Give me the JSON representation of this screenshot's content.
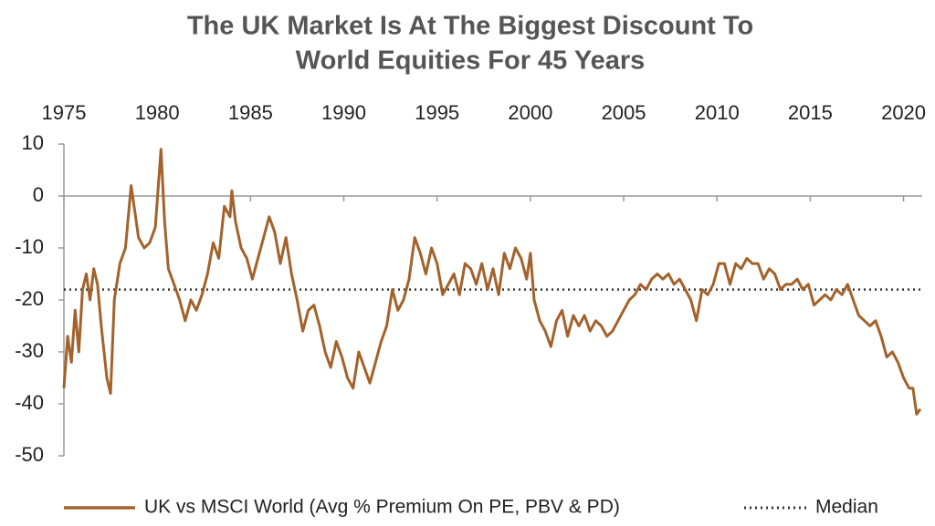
{
  "chart_data": {
    "type": "line",
    "title": [
      "The UK Market Is At The Biggest Discount To",
      "World Equities For 45 Years"
    ],
    "xlim": [
      1975,
      2021
    ],
    "xticks": [
      1975,
      1980,
      1985,
      1990,
      1995,
      2000,
      2005,
      2010,
      2015,
      2020
    ],
    "ylim": [
      -50,
      10
    ],
    "yticks": [
      10,
      0,
      -10,
      -20,
      -30,
      -40,
      -50
    ],
    "series": [
      {
        "name": "UK vs MSCI World (Avg % Premium On PE, PBV & PD)",
        "color": "#a3622b",
        "x": [
          1975.0,
          1975.2,
          1975.4,
          1975.6,
          1975.8,
          1976.0,
          1976.2,
          1976.4,
          1976.6,
          1976.8,
          1977.0,
          1977.3,
          1977.5,
          1977.7,
          1978.0,
          1978.3,
          1978.6,
          1978.8,
          1979.0,
          1979.3,
          1979.6,
          1979.9,
          1980.2,
          1980.4,
          1980.6,
          1980.9,
          1981.2,
          1981.5,
          1981.8,
          1982.1,
          1982.4,
          1982.7,
          1983.0,
          1983.3,
          1983.6,
          1983.9,
          1984.0,
          1984.2,
          1984.5,
          1984.8,
          1985.1,
          1985.4,
          1985.7,
          1986.0,
          1986.3,
          1986.6,
          1986.9,
          1987.2,
          1987.5,
          1987.8,
          1988.1,
          1988.4,
          1988.7,
          1989.0,
          1989.3,
          1989.6,
          1989.9,
          1990.2,
          1990.5,
          1990.8,
          1991.1,
          1991.4,
          1991.7,
          1992.0,
          1992.3,
          1992.6,
          1992.9,
          1993.2,
          1993.5,
          1993.8,
          1994.1,
          1994.4,
          1994.7,
          1995.0,
          1995.3,
          1995.6,
          1995.9,
          1996.2,
          1996.5,
          1996.8,
          1997.1,
          1997.4,
          1997.7,
          1998.0,
          1998.3,
          1998.6,
          1998.9,
          1999.2,
          1999.5,
          1999.8,
          2000.0,
          2000.2,
          2000.5,
          2000.8,
          2001.1,
          2001.4,
          2001.7,
          2002.0,
          2002.3,
          2002.6,
          2002.9,
          2003.2,
          2003.5,
          2003.8,
          2004.1,
          2004.4,
          2004.7,
          2005.0,
          2005.3,
          2005.6,
          2005.9,
          2006.2,
          2006.5,
          2006.8,
          2007.1,
          2007.4,
          2007.7,
          2008.0,
          2008.3,
          2008.6,
          2008.9,
          2009.2,
          2009.5,
          2009.8,
          2010.1,
          2010.4,
          2010.7,
          2011.0,
          2011.3,
          2011.6,
          2011.9,
          2012.2,
          2012.5,
          2012.8,
          2013.1,
          2013.4,
          2013.7,
          2014.0,
          2014.3,
          2014.6,
          2014.9,
          2015.2,
          2015.5,
          2015.8,
          2016.1,
          2016.4,
          2016.7,
          2017.0,
          2017.3,
          2017.6,
          2017.9,
          2018.2,
          2018.5,
          2018.8,
          2019.1,
          2019.4,
          2019.7,
          2020.0,
          2020.3,
          2020.5,
          2020.7,
          2020.9
        ],
        "values": [
          -37,
          -27,
          -32,
          -22,
          -30,
          -18,
          -15,
          -20,
          -14,
          -17,
          -25,
          -35,
          -38,
          -20,
          -13,
          -10,
          2,
          -3,
          -8,
          -10,
          -9,
          -6,
          9,
          -5,
          -14,
          -17,
          -20,
          -24,
          -20,
          -22,
          -19,
          -15,
          -9,
          -12,
          -2,
          -4,
          1,
          -5,
          -10,
          -12,
          -16,
          -12,
          -8,
          -4,
          -7,
          -13,
          -8,
          -15,
          -20,
          -26,
          -22,
          -21,
          -25,
          -30,
          -33,
          -28,
          -31,
          -35,
          -37,
          -30,
          -33,
          -36,
          -32,
          -28,
          -25,
          -18,
          -22,
          -20,
          -16,
          -8,
          -11,
          -15,
          -10,
          -13,
          -19,
          -17,
          -15,
          -19,
          -13,
          -14,
          -17,
          -13,
          -18,
          -14,
          -19,
          -11,
          -14,
          -10,
          -12,
          -16,
          -11,
          -20,
          -24,
          -26,
          -29,
          -24,
          -22,
          -27,
          -23,
          -25,
          -23,
          -26,
          -24,
          -25,
          -27,
          -26,
          -24,
          -22,
          -20,
          -19,
          -17,
          -18,
          -16,
          -15,
          -16,
          -15,
          -17,
          -16,
          -18,
          -20,
          -24,
          -18,
          -19,
          -17,
          -13,
          -13,
          -17,
          -13,
          -14,
          -12,
          -13,
          -13,
          -16,
          -14,
          -15,
          -18,
          -17,
          -17,
          -16,
          -18,
          -17,
          -21,
          -20,
          -19,
          -20,
          -18,
          -19,
          -17,
          -20,
          -23,
          -24,
          -25,
          -24,
          -27,
          -31,
          -30,
          -32,
          -35,
          -37,
          -37,
          -42,
          -41
        ]
      }
    ],
    "reference_lines": [
      {
        "name": "Median",
        "value": -18,
        "color": "#333333",
        "style": "dotted"
      }
    ]
  }
}
